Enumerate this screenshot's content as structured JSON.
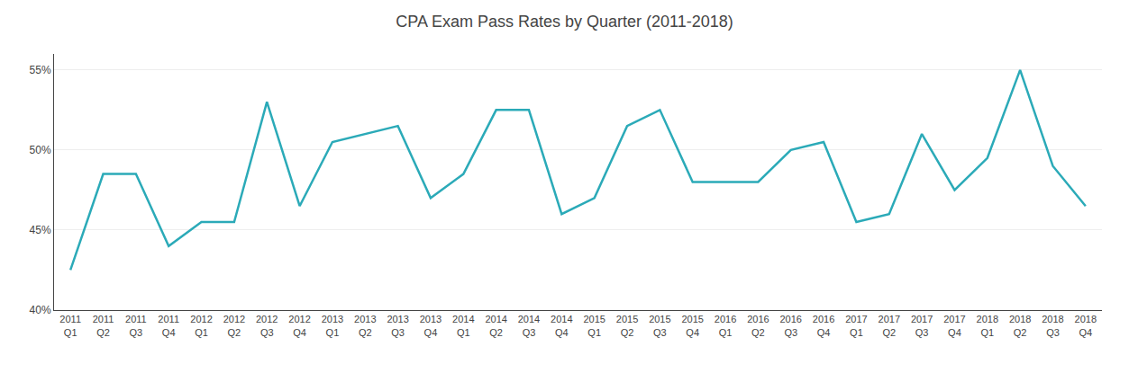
{
  "chart_data": {
    "type": "line",
    "title": "CPA Exam Pass Rates by Quarter (2011-2018)",
    "categories": [
      "2011\nQ1",
      "2011\nQ2",
      "2011\nQ3",
      "2011\nQ4",
      "2012\nQ1",
      "2012\nQ2",
      "2012\nQ3",
      "2012\nQ4",
      "2013\nQ1",
      "2013\nQ2",
      "2013\nQ3",
      "2013\nQ4",
      "2014\nQ1",
      "2014\nQ2",
      "2014\nQ3",
      "2014\nQ4",
      "2015\nQ1",
      "2015\nQ2",
      "2015\nQ3",
      "2015\nQ4",
      "2016\nQ1",
      "2016\nQ2",
      "2016\nQ3",
      "2016\nQ4",
      "2017\nQ1",
      "2017\nQ2",
      "2017\nQ3",
      "2017\nQ4",
      "2018\nQ1",
      "2018\nQ2",
      "2018\nQ3",
      "2018\nQ4"
    ],
    "values": [
      42.5,
      48.5,
      48.5,
      44.0,
      45.5,
      45.5,
      53.0,
      46.5,
      50.5,
      51.0,
      51.5,
      47.0,
      48.5,
      52.5,
      52.5,
      46.0,
      47.0,
      51.5,
      52.5,
      48.0,
      48.0,
      48.0,
      50.0,
      50.5,
      45.5,
      46.0,
      51.0,
      47.5,
      49.5,
      55.0,
      49.0,
      46.5
    ],
    "color": "#2BAAB8",
    "ylim": [
      40,
      56
    ],
    "yticks": [
      {
        "value": 40,
        "label": "40%"
      },
      {
        "value": 45,
        "label": "45%"
      },
      {
        "value": 50,
        "label": "50%"
      },
      {
        "value": 55,
        "label": "55%"
      }
    ],
    "grid": true
  }
}
